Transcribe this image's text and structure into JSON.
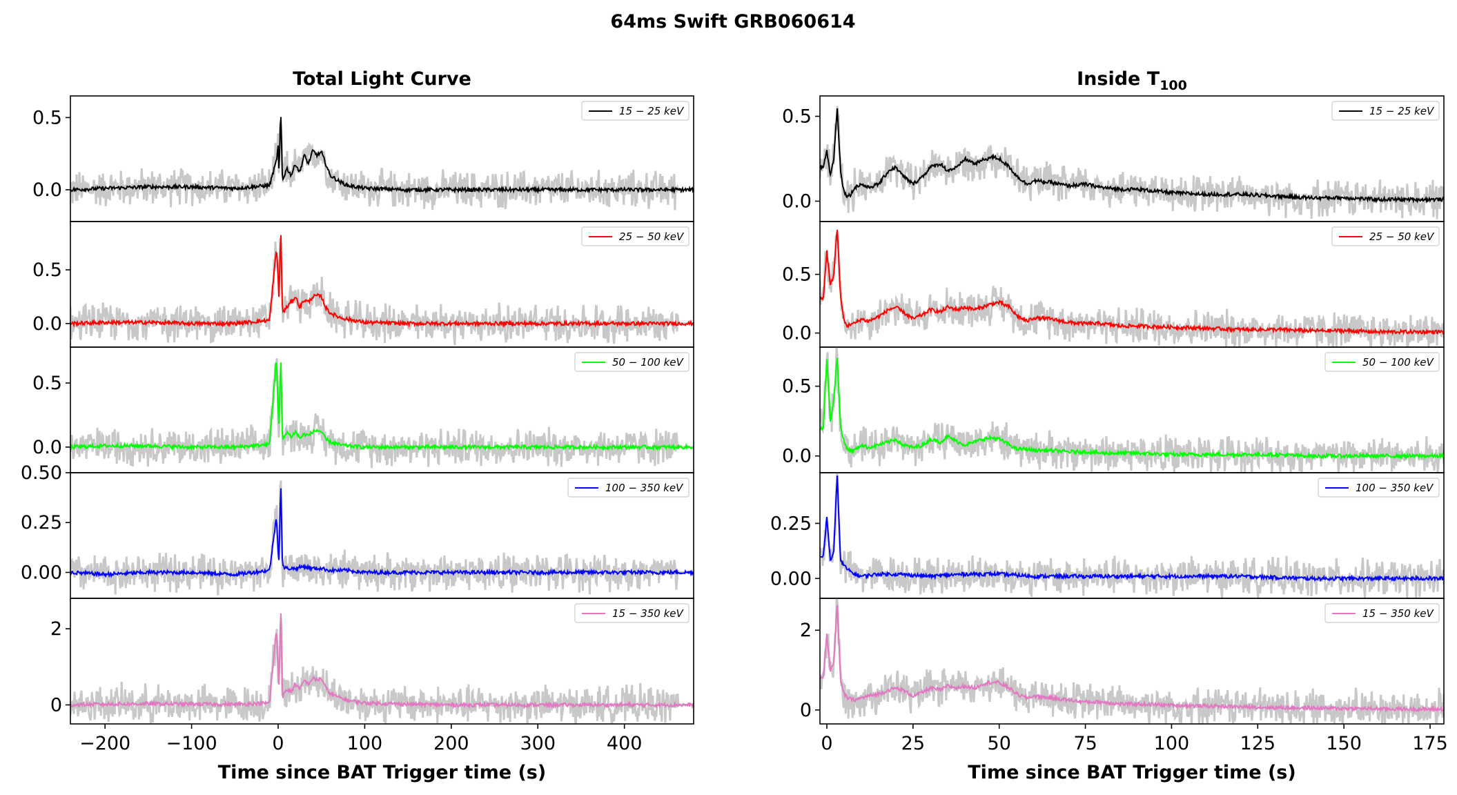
{
  "figure": {
    "suptitle": "64ms Swift GRB060614",
    "noise_color": "#c8c8c8"
  },
  "chart_data": [
    {
      "type": "line",
      "title": "Total Light Curve",
      "xlabel": "Time since BAT Trigger time (s)",
      "xlim": [
        -240,
        480
      ],
      "xticks": [
        -200,
        -100,
        0,
        100,
        200,
        300,
        400
      ],
      "xtick_labels": [
        "−200",
        "−100",
        "0",
        "100",
        "200",
        "300",
        "400"
      ],
      "panels": [
        {
          "legend": "15 − 25 keV",
          "color": "#000000",
          "ylim": [
            -0.22,
            0.65
          ],
          "yticks": [
            0.0,
            0.5
          ],
          "ytick_labels": [
            "0.0",
            "0.5"
          ],
          "series": {
            "x": [
              -240,
              -200,
              -150,
              -100,
              -50,
              -10,
              -2,
              0,
              1,
              3,
              5,
              10,
              15,
              20,
              25,
              30,
              35,
              40,
              45,
              50,
              55,
              60,
              70,
              80,
              100,
              150,
              200,
              300,
              400,
              460,
              480
            ],
            "y": [
              0.0,
              0.01,
              0.02,
              0.02,
              0.01,
              0.03,
              0.2,
              0.3,
              0.1,
              0.55,
              0.06,
              0.15,
              0.1,
              0.18,
              0.12,
              0.24,
              0.18,
              0.27,
              0.24,
              0.26,
              0.18,
              0.1,
              0.06,
              0.03,
              0.01,
              0.0,
              0.0,
              0.0,
              0.0,
              0.0,
              0.0
            ]
          }
        },
        {
          "legend": "25 − 50 keV",
          "color": "#ff0000",
          "ylim": [
            -0.22,
            0.95
          ],
          "yticks": [
            0.0,
            0.5
          ],
          "ytick_labels": [
            "0.0",
            "0.5"
          ],
          "series": {
            "x": [
              -240,
              -200,
              -150,
              -100,
              -50,
              -10,
              -2,
              0,
              1,
              3,
              5,
              10,
              15,
              20,
              25,
              30,
              35,
              40,
              45,
              50,
              55,
              60,
              70,
              80,
              100,
              150,
              200,
              300,
              400,
              460,
              480
            ],
            "y": [
              0.0,
              0.01,
              0.01,
              0.0,
              0.0,
              0.03,
              0.7,
              0.45,
              0.2,
              0.9,
              0.1,
              0.15,
              0.2,
              0.25,
              0.15,
              0.22,
              0.2,
              0.25,
              0.26,
              0.25,
              0.15,
              0.1,
              0.06,
              0.04,
              0.01,
              0.0,
              0.0,
              0.0,
              0.0,
              0.0,
              0.0
            ]
          }
        },
        {
          "legend": "50 − 100 keV",
          "color": "#00ff00",
          "ylim": [
            -0.2,
            0.78
          ],
          "yticks": [
            0.0,
            0.5
          ],
          "ytick_labels": [
            "0.0",
            "0.5"
          ],
          "series": {
            "x": [
              -240,
              -200,
              -150,
              -100,
              -50,
              -10,
              -2,
              0,
              1,
              3,
              5,
              10,
              15,
              20,
              25,
              30,
              35,
              40,
              45,
              50,
              55,
              60,
              70,
              80,
              100,
              150,
              200,
              300,
              400,
              460,
              480
            ],
            "y": [
              0.0,
              0.01,
              0.01,
              0.0,
              0.0,
              0.02,
              0.7,
              0.3,
              0.15,
              0.72,
              0.05,
              0.12,
              0.08,
              0.12,
              0.07,
              0.1,
              0.09,
              0.12,
              0.13,
              0.12,
              0.06,
              0.04,
              0.02,
              0.01,
              0.0,
              0.0,
              0.0,
              0.0,
              0.0,
              0.0,
              0.0
            ]
          }
        },
        {
          "legend": "100 − 350 keV",
          "color": "#0000ff",
          "ylim": [
            -0.13,
            0.5
          ],
          "yticks": [
            0.0,
            0.25,
            0.5
          ],
          "ytick_labels": [
            "0.00",
            "0.25",
            "0.50"
          ],
          "series": {
            "x": [
              -240,
              -200,
              -150,
              -100,
              -50,
              -10,
              -2,
              0,
              1,
              3,
              5,
              10,
              20,
              30,
              40,
              50,
              60,
              80,
              100,
              150,
              200,
              300,
              400,
              460,
              480
            ],
            "y": [
              0.0,
              -0.01,
              0.0,
              0.0,
              -0.01,
              0.01,
              0.28,
              0.12,
              0.05,
              0.47,
              0.03,
              0.02,
              0.02,
              0.03,
              0.02,
              0.02,
              0.01,
              0.01,
              0.0,
              0.0,
              0.0,
              0.0,
              0.0,
              0.0,
              0.0
            ]
          }
        },
        {
          "legend": "15 − 350 keV",
          "color": "#e377c2",
          "ylim": [
            -0.5,
            2.8
          ],
          "yticks": [
            0,
            2
          ],
          "ytick_labels": [
            "0",
            "2"
          ],
          "series": {
            "x": [
              -240,
              -200,
              -150,
              -100,
              -50,
              -10,
              -2,
              0,
              1,
              3,
              5,
              10,
              15,
              20,
              25,
              30,
              35,
              40,
              45,
              50,
              55,
              60,
              70,
              80,
              100,
              150,
              200,
              300,
              400,
              460,
              480
            ],
            "y": [
              0.0,
              0.02,
              0.03,
              0.02,
              0.01,
              0.05,
              2.0,
              1.0,
              0.4,
              2.7,
              0.2,
              0.4,
              0.35,
              0.55,
              0.4,
              0.65,
              0.55,
              0.7,
              0.65,
              0.7,
              0.45,
              0.3,
              0.2,
              0.12,
              0.05,
              0.02,
              0.0,
              0.0,
              0.0,
              0.0,
              0.0
            ]
          }
        }
      ]
    },
    {
      "type": "line",
      "title": "Inside T",
      "title_sub": "100",
      "xlabel": "Time since BAT Trigger time (s)",
      "xlim": [
        -2,
        179
      ],
      "xticks": [
        0,
        25,
        50,
        75,
        100,
        125,
        150,
        175
      ],
      "xtick_labels": [
        "0",
        "25",
        "50",
        "75",
        "100",
        "125",
        "150",
        "175"
      ],
      "panels": [
        {
          "legend": "15 − 25 keV",
          "color": "#000000",
          "ylim": [
            -0.12,
            0.62
          ],
          "yticks": [
            0.0,
            0.5
          ],
          "ytick_labels": [
            "0.0",
            "0.5"
          ],
          "series": {
            "x": [
              -1,
              0,
              1,
              2,
              3,
              4,
              5,
              6,
              7,
              8,
              10,
              12,
              15,
              18,
              20,
              22,
              25,
              28,
              30,
              33,
              35,
              38,
              40,
              43,
              45,
              48,
              50,
              53,
              55,
              58,
              60,
              65,
              70,
              75,
              80,
              85,
              90,
              100,
              110,
              120,
              130,
              140,
              150,
              160,
              170,
              179
            ],
            "y": [
              0.2,
              0.3,
              0.15,
              0.25,
              0.55,
              0.18,
              0.05,
              0.03,
              0.04,
              0.08,
              0.1,
              0.08,
              0.1,
              0.18,
              0.2,
              0.15,
              0.1,
              0.15,
              0.2,
              0.22,
              0.18,
              0.2,
              0.25,
              0.22,
              0.24,
              0.26,
              0.25,
              0.2,
              0.15,
              0.1,
              0.12,
              0.11,
              0.09,
              0.1,
              0.08,
              0.07,
              0.07,
              0.05,
              0.04,
              0.04,
              0.03,
              0.02,
              0.02,
              0.01,
              0.01,
              0.01
            ]
          }
        },
        {
          "legend": "25 − 50 keV",
          "color": "#ff0000",
          "ylim": [
            -0.12,
            0.95
          ],
          "yticks": [
            0.0,
            0.5
          ],
          "ytick_labels": [
            "0.0",
            "0.5"
          ],
          "series": {
            "x": [
              -1,
              0,
              1,
              2,
              3,
              4,
              5,
              6,
              7,
              8,
              10,
              12,
              15,
              18,
              20,
              22,
              25,
              28,
              30,
              33,
              35,
              38,
              40,
              43,
              45,
              48,
              50,
              53,
              55,
              58,
              60,
              65,
              70,
              75,
              80,
              85,
              90,
              100,
              110,
              120,
              130,
              140,
              150,
              160,
              170,
              179
            ],
            "y": [
              0.3,
              0.7,
              0.4,
              0.5,
              0.9,
              0.3,
              0.1,
              0.06,
              0.08,
              0.08,
              0.12,
              0.1,
              0.14,
              0.2,
              0.22,
              0.18,
              0.12,
              0.16,
              0.2,
              0.18,
              0.22,
              0.2,
              0.22,
              0.2,
              0.22,
              0.25,
              0.26,
              0.22,
              0.15,
              0.1,
              0.13,
              0.12,
              0.09,
              0.08,
              0.08,
              0.06,
              0.06,
              0.05,
              0.04,
              0.03,
              0.03,
              0.02,
              0.02,
              0.01,
              0.01,
              0.01
            ]
          }
        },
        {
          "legend": "50 − 100 keV",
          "color": "#00ff00",
          "ylim": [
            -0.12,
            0.78
          ],
          "yticks": [
            0.0,
            0.5
          ],
          "ytick_labels": [
            "0.0",
            "0.5"
          ],
          "series": {
            "x": [
              -1,
              0,
              1,
              2,
              3,
              4,
              5,
              6,
              7,
              8,
              10,
              12,
              15,
              18,
              20,
              22,
              25,
              28,
              30,
              33,
              35,
              38,
              40,
              43,
              45,
              48,
              50,
              53,
              55,
              58,
              60,
              65,
              70,
              75,
              80,
              85,
              90,
              100,
              110,
              120,
              130,
              140,
              150,
              160,
              170,
              179
            ],
            "y": [
              0.2,
              0.7,
              0.25,
              0.4,
              0.72,
              0.2,
              0.1,
              0.05,
              0.04,
              0.04,
              0.08,
              0.06,
              0.08,
              0.1,
              0.12,
              0.08,
              0.06,
              0.08,
              0.12,
              0.1,
              0.14,
              0.1,
              0.08,
              0.1,
              0.12,
              0.13,
              0.12,
              0.08,
              0.05,
              0.05,
              0.04,
              0.04,
              0.03,
              0.03,
              0.02,
              0.02,
              0.02,
              0.01,
              0.01,
              0.01,
              0.01,
              0.0,
              0.0,
              0.0,
              0.0,
              0.0
            ]
          }
        },
        {
          "legend": "100 − 350 keV",
          "color": "#0000ff",
          "ylim": [
            -0.09,
            0.48
          ],
          "yticks": [
            0.0,
            0.25
          ],
          "ytick_labels": [
            "0.00",
            "0.25"
          ],
          "series": {
            "x": [
              -1,
              0,
              1,
              2,
              3,
              4,
              5,
              6,
              8,
              10,
              15,
              20,
              30,
              40,
              50,
              60,
              80,
              100,
              120,
              140,
              160,
              179
            ],
            "y": [
              0.1,
              0.28,
              0.08,
              0.12,
              0.47,
              0.08,
              0.06,
              0.04,
              0.02,
              0.01,
              0.02,
              0.02,
              0.01,
              0.02,
              0.02,
              0.01,
              0.01,
              0.01,
              0.01,
              0.0,
              0.0,
              0.0
            ]
          }
        },
        {
          "legend": "15 − 350 keV",
          "color": "#e377c2",
          "ylim": [
            -0.35,
            2.8
          ],
          "yticks": [
            0,
            2
          ],
          "ytick_labels": [
            "0",
            "2"
          ],
          "series": {
            "x": [
              -1,
              0,
              1,
              2,
              3,
              4,
              5,
              6,
              8,
              10,
              12,
              15,
              18,
              20,
              22,
              25,
              28,
              30,
              33,
              35,
              38,
              40,
              43,
              45,
              48,
              50,
              53,
              55,
              58,
              60,
              65,
              70,
              75,
              80,
              85,
              90,
              100,
              110,
              120,
              130,
              140,
              150,
              160,
              170,
              179
            ],
            "y": [
              0.8,
              1.9,
              1.0,
              1.2,
              2.7,
              0.7,
              0.4,
              0.3,
              0.25,
              0.3,
              0.35,
              0.4,
              0.5,
              0.55,
              0.5,
              0.35,
              0.45,
              0.55,
              0.5,
              0.6,
              0.55,
              0.6,
              0.55,
              0.65,
              0.7,
              0.68,
              0.55,
              0.4,
              0.3,
              0.35,
              0.3,
              0.25,
              0.2,
              0.2,
              0.15,
              0.15,
              0.12,
              0.1,
              0.08,
              0.06,
              0.05,
              0.04,
              0.03,
              0.02,
              0.02
            ]
          }
        }
      ]
    }
  ]
}
